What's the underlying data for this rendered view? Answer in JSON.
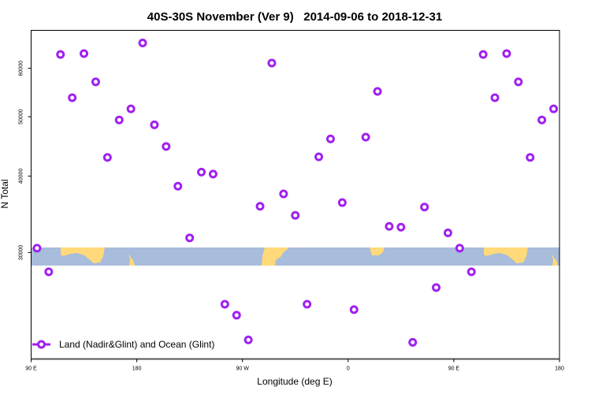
{
  "chart_data": {
    "type": "scatter",
    "title": "40S-30S November (Ver 9)   2014-09-06 to 2018-12-31",
    "xlabel": "Longitude (deg E)",
    "ylabel": "N Total",
    "xlim": [
      90,
      540
    ],
    "ylim": [
      20100,
      69200
    ],
    "y_scale": "log",
    "grid": false,
    "legend_position": "bottom-left",
    "x_ticks": [
      {
        "value": 90,
        "label": "90 E"
      },
      {
        "value": 180,
        "label": "180"
      },
      {
        "value": 270,
        "label": "90 W"
      },
      {
        "value": 360,
        "label": "0"
      },
      {
        "value": 450,
        "label": "90 E"
      },
      {
        "value": 540,
        "label": "180"
      }
    ],
    "y_ticks": [
      {
        "value": 30000,
        "label": "30000"
      },
      {
        "value": 40000,
        "label": "40000"
      },
      {
        "value": 50000,
        "label": "50000"
      },
      {
        "value": 60000,
        "label": "60000"
      }
    ],
    "background_map": {
      "ocean_color": "#a8bcdb",
      "land_color": "#ffd97a",
      "latitude_band": "40S-30S"
    },
    "series": [
      {
        "name": "Land (Nadir&Glint) and Ocean (Glint)",
        "color": "#a020f0",
        "marker": "open-circle",
        "x": [
          95,
          105,
          115,
          125,
          135,
          145,
          155,
          165,
          175,
          185,
          195,
          205,
          215,
          225,
          235,
          245,
          255,
          265,
          275,
          285,
          295,
          305,
          315,
          325,
          335,
          345,
          355,
          365,
          375,
          385,
          395,
          405,
          415,
          425,
          435,
          445,
          455,
          465,
          475,
          485,
          495,
          505,
          515,
          525,
          535
        ],
        "y": [
          30500,
          27900,
          63200,
          53700,
          63400,
          57000,
          42900,
          49400,
          51500,
          66000,
          48500,
          44700,
          38500,
          31700,
          40600,
          40300,
          24700,
          23700,
          21600,
          35700,
          61200,
          37400,
          34500,
          24700,
          43000,
          46000,
          36200,
          24200,
          46300,
          55000,
          33100,
          33000,
          21400,
          35600,
          26300,
          32300,
          30500,
          27900,
          63200,
          53700,
          63400,
          57000,
          42900,
          49400,
          51500
        ]
      }
    ]
  }
}
